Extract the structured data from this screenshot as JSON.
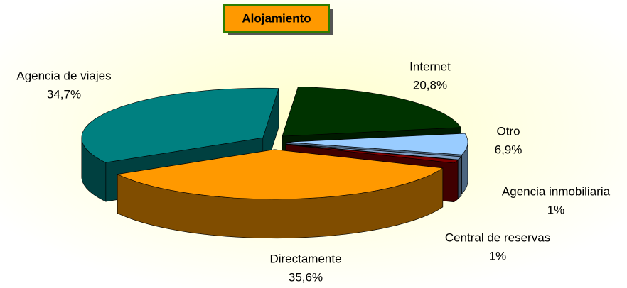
{
  "chart_data": {
    "type": "pie",
    "title": "Alojamiento",
    "categories": [
      "Internet",
      "Otro",
      "Agencia inmobiliaria",
      "Central de reservas",
      "Directamente",
      "Agencia de viajes"
    ],
    "values": [
      20.8,
      6.9,
      1,
      1,
      35.6,
      34.7
    ],
    "value_labels": [
      "20,8%",
      "6,9%",
      "1%",
      "1%",
      "35,6%",
      "34,7%"
    ],
    "colors": [
      "#003300",
      "#99ccff",
      "#7f9fc4",
      "#800000",
      "#ff9900",
      "#008080"
    ]
  }
}
